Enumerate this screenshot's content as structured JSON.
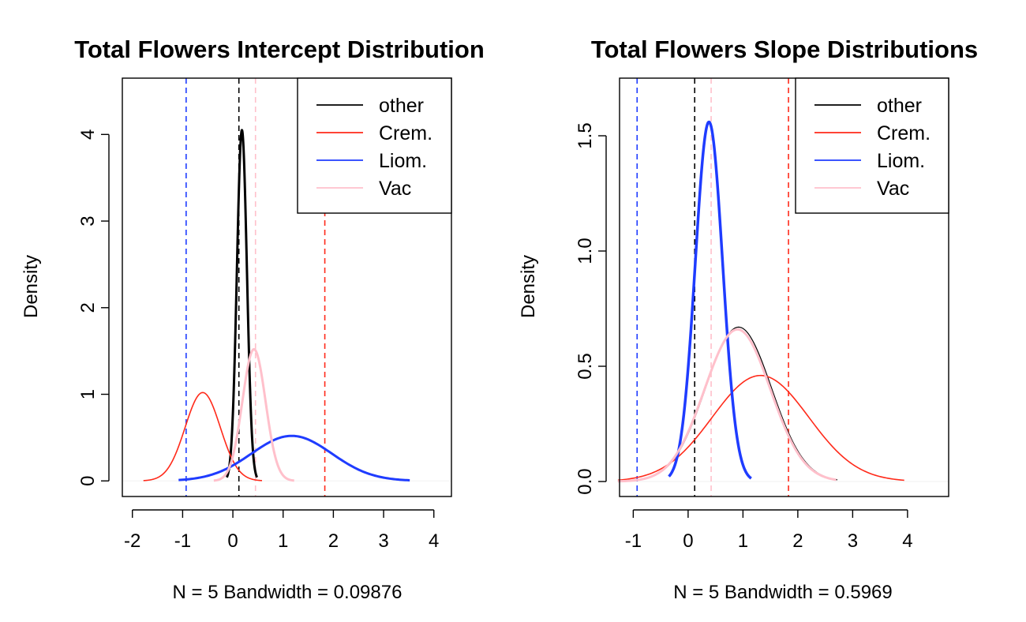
{
  "colors": {
    "other": "#000000",
    "crem": "#ff2a1a",
    "liom": "#1f3cff",
    "vac": "#ffc0cb"
  },
  "chart_data": [
    {
      "type": "line",
      "title": "Total Flowers Intercept Distribution",
      "ylabel": "Density",
      "xlabel": "N = 5   Bandwidth = 0.09876",
      "xlim": [
        -2.2,
        4.35
      ],
      "ylim": [
        -0.18,
        4.65
      ],
      "x_ticks": [
        -2,
        -1,
        0,
        1,
        2,
        3,
        4
      ],
      "x_tick_labels": [
        "-2",
        "-1",
        "0",
        "1",
        "2",
        "3",
        "4"
      ],
      "y_ticks": [
        0,
        1,
        2,
        3,
        4
      ],
      "y_tick_labels": [
        "0",
        "1",
        "2",
        "3",
        "4"
      ],
      "legend": {
        "position": "top-right",
        "entries": [
          {
            "label": "other",
            "color_key": "other"
          },
          {
            "label": "Crem.",
            "color_key": "crem"
          },
          {
            "label": "Liom.",
            "color_key": "liom"
          },
          {
            "label": "Vac",
            "color_key": "vac"
          }
        ]
      },
      "series": [
        {
          "name": "other",
          "color_key": "other",
          "mean": 0.18,
          "sd": 0.099,
          "peak": 4.05,
          "from": -0.12,
          "to": 0.48,
          "width": 3
        },
        {
          "name": "Crem.",
          "color_key": "crem",
          "mean": -0.6,
          "sd": 0.35,
          "peak": 1.02,
          "from": -1.78,
          "to": 0.58,
          "width": 1.6
        },
        {
          "name": "Liom.",
          "color_key": "liom",
          "mean": 1.17,
          "sd": 0.8,
          "peak": 0.52,
          "from": -1.08,
          "to": 3.52,
          "width": 3
        },
        {
          "name": "Vac",
          "color_key": "vac",
          "mean": 0.42,
          "sd": 0.23,
          "peak": 1.52,
          "from": -0.38,
          "to": 1.22,
          "width": 3
        }
      ],
      "vlines": [
        {
          "x": -0.93,
          "color_key": "liom"
        },
        {
          "x": 0.12,
          "color_key": "other"
        },
        {
          "x": 0.45,
          "color_key": "vac"
        },
        {
          "x": 1.83,
          "color_key": "crem"
        }
      ]
    },
    {
      "type": "line",
      "title": "Total Flowers Slope Distributions",
      "ylabel": "Density",
      "xlabel": "N = 5   Bandwidth = 0.5969",
      "xlim": [
        -1.25,
        4.75
      ],
      "ylim": [
        -0.065,
        1.75
      ],
      "x_ticks": [
        -1,
        0,
        1,
        2,
        3,
        4
      ],
      "x_tick_labels": [
        "-1",
        "0",
        "1",
        "2",
        "3",
        "4"
      ],
      "y_ticks": [
        0,
        0.5,
        1,
        1.5
      ],
      "y_tick_labels": [
        "0.0",
        "0.5",
        "1.0",
        "1.5"
      ],
      "legend": {
        "position": "top-right",
        "entries": [
          {
            "label": "other",
            "color_key": "other"
          },
          {
            "label": "Crem.",
            "color_key": "crem"
          },
          {
            "label": "Liom.",
            "color_key": "liom"
          },
          {
            "label": "Vac",
            "color_key": "vac"
          }
        ]
      },
      "series": [
        {
          "name": "other",
          "color_key": "other",
          "mean": 0.92,
          "sd": 0.6,
          "peak": 0.67,
          "from": -1.28,
          "to": 2.72,
          "width": 1.2
        },
        {
          "name": "Crem.",
          "color_key": "crem",
          "mean": 1.32,
          "sd": 0.88,
          "peak": 0.46,
          "from": -1.28,
          "to": 3.94,
          "width": 1.6
        },
        {
          "name": "Liom.",
          "color_key": "liom",
          "mean": 0.38,
          "sd": 0.25,
          "peak": 1.56,
          "from": -0.35,
          "to": 1.15,
          "width": 3.5
        },
        {
          "name": "Vac",
          "color_key": "vac",
          "mean": 0.9,
          "sd": 0.6,
          "peak": 0.66,
          "from": -1.28,
          "to": 2.7,
          "width": 3
        }
      ],
      "vlines": [
        {
          "x": -0.93,
          "color_key": "liom"
        },
        {
          "x": 0.12,
          "color_key": "other"
        },
        {
          "x": 0.42,
          "color_key": "vac"
        },
        {
          "x": 1.83,
          "color_key": "crem"
        }
      ]
    }
  ]
}
